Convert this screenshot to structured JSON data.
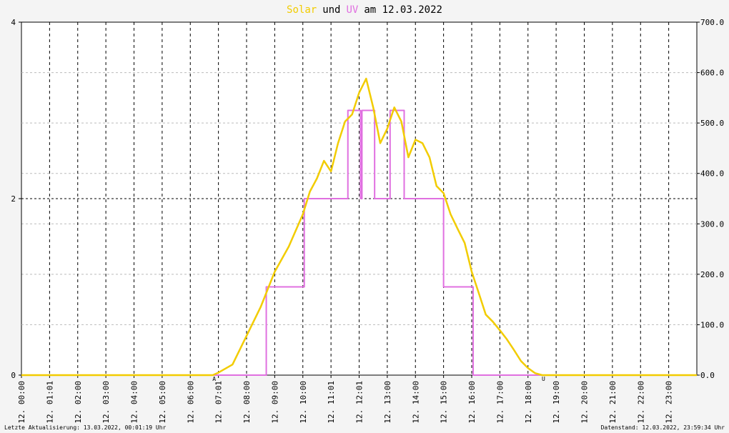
{
  "chart_data": {
    "type": "line",
    "title_parts": [
      {
        "text": "Solar",
        "color": "#f2cc00"
      },
      {
        "text": "und",
        "color": "#000000"
      },
      {
        "text": "UV",
        "color": "#e070e0"
      },
      {
        "text": "am 12.03.2022",
        "color": "#000000"
      }
    ],
    "xlim": [
      0,
      24
    ],
    "xticks": [
      {
        "value": 0,
        "label": "12. 00:00"
      },
      {
        "value": 1,
        "label": "12. 01:01"
      },
      {
        "value": 2,
        "label": "12. 02:00"
      },
      {
        "value": 3,
        "label": "12. 03:00"
      },
      {
        "value": 4,
        "label": "12. 04:00"
      },
      {
        "value": 5,
        "label": "12. 05:00"
      },
      {
        "value": 6,
        "label": "12. 06:00"
      },
      {
        "value": 7,
        "label": "12. 07:01"
      },
      {
        "value": 8,
        "label": "12. 08:00"
      },
      {
        "value": 9,
        "label": "12. 09:00"
      },
      {
        "value": 10,
        "label": "12. 10:00"
      },
      {
        "value": 11,
        "label": "12. 11:01"
      },
      {
        "value": 12,
        "label": "12. 12:01"
      },
      {
        "value": 13,
        "label": "12. 13:00"
      },
      {
        "value": 14,
        "label": "12. 14:00"
      },
      {
        "value": 15,
        "label": "12. 15:00"
      },
      {
        "value": 16,
        "label": "12. 16:00"
      },
      {
        "value": 17,
        "label": "12. 17:00"
      },
      {
        "value": 18,
        "label": "12. 18:00"
      },
      {
        "value": 19,
        "label": "12. 19:00"
      },
      {
        "value": 20,
        "label": "12. 20:00"
      },
      {
        "value": 21,
        "label": "12. 21:00"
      },
      {
        "value": 22,
        "label": "12. 22:00"
      },
      {
        "value": 23,
        "label": "12. 23:00"
      }
    ],
    "ylim": [
      0,
      4
    ],
    "yticks": [
      0,
      2,
      4
    ],
    "y2lim": [
      0,
      700
    ],
    "y2ticks": [
      {
        "value": 0,
        "label": "0.0"
      },
      {
        "value": 100,
        "label": "100.0"
      },
      {
        "value": 200,
        "label": "200.0"
      },
      {
        "value": 300,
        "label": "300.0"
      },
      {
        "value": 400,
        "label": "400.0"
      },
      {
        "value": 500,
        "label": "500.0"
      },
      {
        "value": 600,
        "label": "600.0"
      },
      {
        "value": 700,
        "label": "700.0"
      }
    ],
    "grid": true,
    "series": [
      {
        "name": "UV",
        "color": "#e070e0",
        "axis": "y",
        "x": [
          0,
          8.7,
          8.7,
          10.05,
          10.05,
          11.6,
          11.6,
          12.05,
          12.05,
          12.1,
          12.1,
          12.55,
          12.55,
          13.1,
          13.1,
          13.6,
          13.6,
          15.0,
          15.0,
          16.05,
          16.05,
          24
        ],
        "values": [
          0,
          0,
          1,
          1,
          2,
          2,
          3,
          3,
          2,
          2,
          3,
          3,
          2,
          2,
          3,
          3,
          2,
          2,
          1,
          1,
          0,
          0
        ]
      },
      {
        "name": "Solar",
        "color": "#f2cc00",
        "axis": "y2",
        "x": [
          0,
          6.8,
          7.0,
          7.5,
          8.0,
          8.5,
          9.0,
          9.5,
          10.0,
          10.25,
          10.5,
          10.75,
          11.0,
          11.25,
          11.5,
          11.75,
          12.0,
          12.25,
          12.5,
          12.75,
          13.0,
          13.25,
          13.5,
          13.75,
          14.0,
          14.25,
          14.5,
          14.75,
          15.0,
          15.25,
          15.5,
          15.75,
          16.0,
          16.25,
          16.5,
          16.75,
          17.0,
          17.25,
          17.5,
          17.75,
          18.0,
          18.25,
          18.5,
          24
        ],
        "values": [
          0,
          0,
          5,
          21,
          78,
          135,
          205,
          255,
          319,
          364,
          390,
          425,
          404,
          460,
          503,
          517,
          560,
          588,
          531,
          460,
          489,
          531,
          503,
          432,
          467,
          460,
          432,
          375,
          361,
          319,
          290,
          262,
          205,
          163,
          120,
          106,
          89,
          71,
          50,
          28,
          14,
          4,
          0,
          0
        ]
      }
    ],
    "annotations": [
      {
        "text": "A",
        "x": 6.85
      },
      {
        "text": "U",
        "x": 18.55
      }
    ],
    "footer_left": "Letzte Aktualisierung: 13.03.2022, 00:01:19 Uhr",
    "footer_right": "Datenstand: 12.03.2022, 23:59:34 Uhr"
  }
}
